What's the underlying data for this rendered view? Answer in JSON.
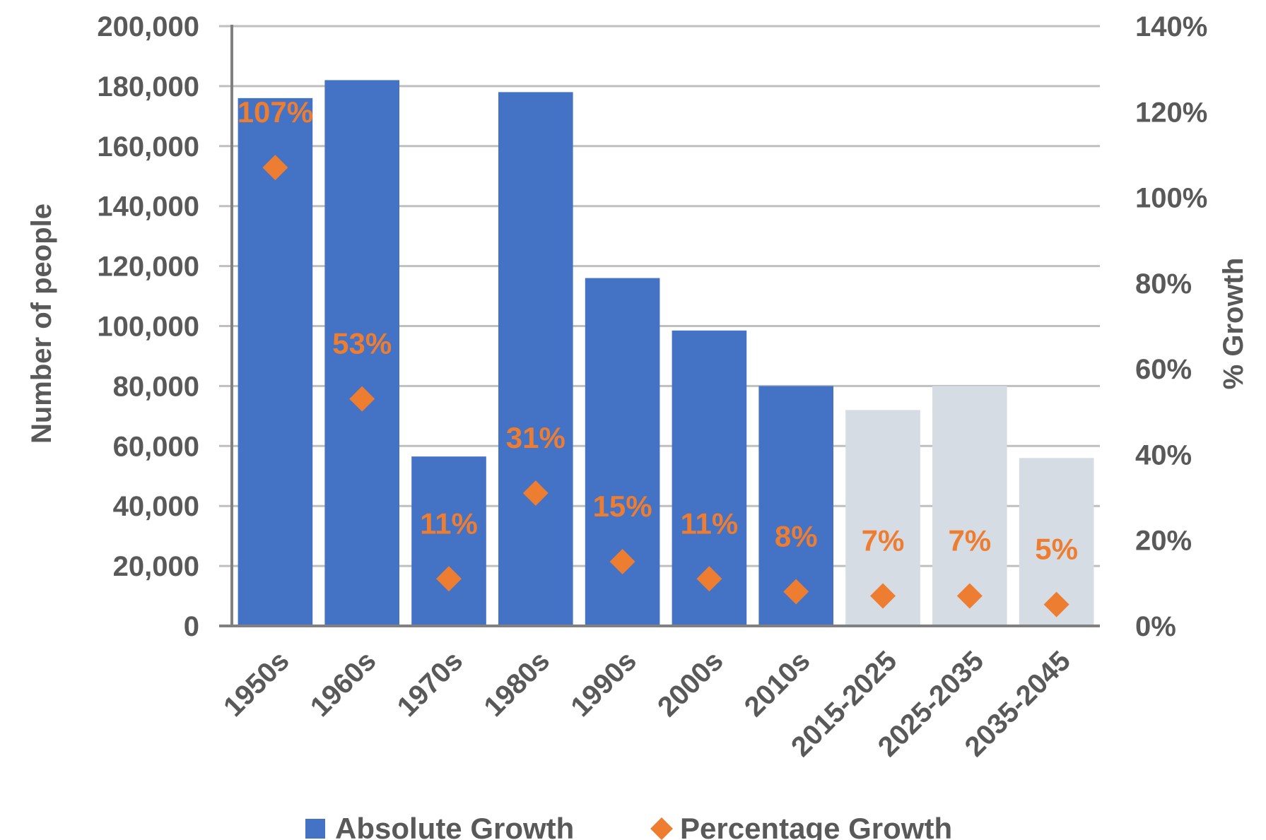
{
  "chart_data": {
    "type": "bar",
    "categories": [
      "1950s",
      "1960s",
      "1970s",
      "1980s",
      "1990s",
      "2000s",
      "2010s",
      "2015-2025",
      "2025-2035",
      "2035-2045"
    ],
    "series": [
      {
        "name": "Absolute Growth",
        "type": "bar",
        "axis": "left",
        "values": [
          176000,
          182000,
          56500,
          178000,
          116000,
          98500,
          80000,
          72000,
          80000,
          56000
        ],
        "color": "#4472C4",
        "projected_color": "#D6DCE4",
        "projected_from_index": 7
      },
      {
        "name": "Percentage Growth",
        "type": "scatter",
        "marker": "diamond",
        "axis": "right",
        "values": [
          107,
          53,
          11,
          31,
          15,
          11,
          8,
          7,
          7,
          5
        ],
        "labels": [
          "107%",
          "53%",
          "11%",
          "31%",
          "15%",
          "11%",
          "8%",
          "7%",
          "7%",
          "5%"
        ],
        "color": "#ED7D31"
      }
    ],
    "ylabel": "Number of people",
    "y2label": "% Growth",
    "ylim": [
      0,
      200000
    ],
    "yticks": [
      0,
      20000,
      40000,
      60000,
      80000,
      100000,
      120000,
      140000,
      160000,
      180000,
      200000
    ],
    "ytick_labels": [
      "0",
      "20,000",
      "40,000",
      "60,000",
      "80,000",
      "100,000",
      "120,000",
      "140,000",
      "160,000",
      "180,000",
      "200,000"
    ],
    "y2lim": [
      0,
      140
    ],
    "y2ticks": [
      0,
      20,
      40,
      60,
      80,
      100,
      120,
      140
    ],
    "y2tick_labels": [
      "0%",
      "20%",
      "40%",
      "60%",
      "80%",
      "100%",
      "120%",
      "140%"
    ],
    "grid": true,
    "legend_position": "bottom",
    "legend": [
      {
        "label": "Absolute Growth",
        "marker": "square",
        "color": "#4472C4"
      },
      {
        "label": "Percentage Growth",
        "marker": "diamond",
        "color": "#ED7D31"
      }
    ]
  }
}
